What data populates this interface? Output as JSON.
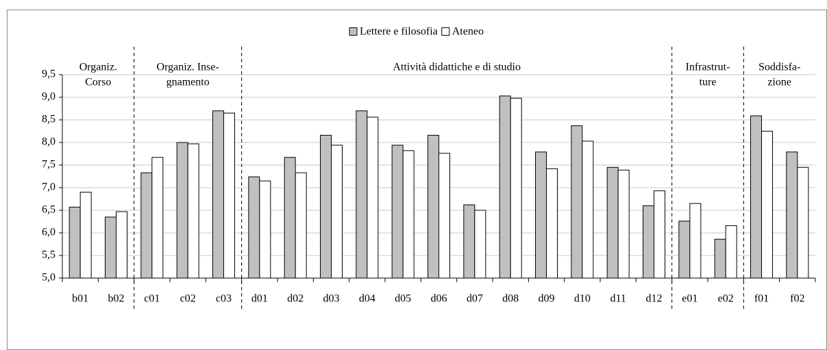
{
  "chart_data": {
    "type": "bar",
    "categories": [
      "b01",
      "b02",
      "c01",
      "c02",
      "c03",
      "d01",
      "d02",
      "d03",
      "d04",
      "d05",
      "d06",
      "d07",
      "d08",
      "d09",
      "d10",
      "d11",
      "d12",
      "e01",
      "e02",
      "f01",
      "f02"
    ],
    "series": [
      {
        "name": "Lettere e filosofia",
        "color": "#c0c0c0",
        "values": [
          6.57,
          6.35,
          7.33,
          8.0,
          8.7,
          7.24,
          7.67,
          8.16,
          8.7,
          7.94,
          8.16,
          6.62,
          9.03,
          7.79,
          8.37,
          7.45,
          6.6,
          6.26,
          5.86,
          8.59,
          7.79
        ]
      },
      {
        "name": "Ateneo",
        "color": "#ffffff",
        "values": [
          6.9,
          6.47,
          7.67,
          7.97,
          8.65,
          7.15,
          7.33,
          7.94,
          8.56,
          7.82,
          7.76,
          6.5,
          8.98,
          7.42,
          8.03,
          7.39,
          6.93,
          6.65,
          6.16,
          8.25,
          7.45
        ]
      }
    ],
    "groups": [
      {
        "lines": [
          "Organiz.",
          "Corso"
        ]
      },
      {
        "lines": [
          "Organiz. Inse-",
          "gnamento"
        ]
      },
      {
        "lines": [
          "Attività didattiche e di studio"
        ]
      },
      {
        "lines": [
          "Infrastrut-",
          "ture"
        ]
      },
      {
        "lines": [
          "Soddisfa-",
          "zione"
        ]
      }
    ],
    "ylim": [
      5.0,
      9.5
    ],
    "yticks": [
      {
        "value": 5.0,
        "label": "5,0"
      },
      {
        "value": 5.5,
        "label": "5,5"
      },
      {
        "value": 6.0,
        "label": "6,0"
      },
      {
        "value": 6.5,
        "label": "6,5"
      },
      {
        "value": 7.0,
        "label": "7,0"
      },
      {
        "value": 7.5,
        "label": "7,5"
      },
      {
        "value": 8.0,
        "label": "8,0"
      },
      {
        "value": 8.5,
        "label": "8,5"
      },
      {
        "value": 9.0,
        "label": "9,0"
      },
      {
        "value": 9.5,
        "label": "9,5"
      }
    ],
    "grid": true,
    "legend": "top"
  }
}
